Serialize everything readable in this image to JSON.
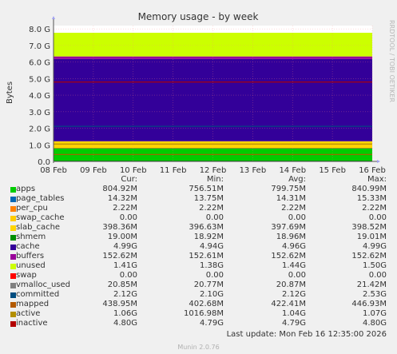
{
  "chart_data": {
    "type": "area",
    "title": "Memory usage - by week",
    "ylabel": "Bytes",
    "xlabel": "",
    "ylim": [
      0,
      8.2
    ],
    "yunit": "G",
    "yticks": [
      "0.0",
      "1.0 G",
      "2.0 G",
      "3.0 G",
      "4.0 G",
      "5.0 G",
      "6.0 G",
      "7.0 G",
      "8.0 G"
    ],
    "yticks_values": [
      0,
      1,
      2,
      3,
      4,
      5,
      6,
      7,
      8
    ],
    "xticks": [
      "08 Feb",
      "09 Feb",
      "10 Feb",
      "11 Feb",
      "12 Feb",
      "13 Feb",
      "14 Feb",
      "15 Feb",
      "16 Feb"
    ],
    "grid": true,
    "stack_order": [
      "apps",
      "page_tables",
      "per_cpu",
      "swap_cache",
      "slab_cache",
      "cache",
      "buffers",
      "unused"
    ],
    "line_order": [
      "swap",
      "vmalloc_used",
      "committed",
      "mapped",
      "active",
      "inactive",
      "shmem"
    ],
    "series": [
      {
        "name": "apps",
        "color": "#00cc00",
        "cur": "804.92M",
        "min": "756.51M",
        "avg": "799.75M",
        "max": "840.99M",
        "value": 0.8
      },
      {
        "name": "page_tables",
        "color": "#0066b3",
        "cur": "14.32M",
        "min": "13.75M",
        "avg": "14.31M",
        "max": "15.33M",
        "value": 0.014
      },
      {
        "name": "per_cpu",
        "color": "#ff8000",
        "cur": "2.22M",
        "min": "2.22M",
        "avg": "2.22M",
        "max": "2.22M",
        "value": 0.002
      },
      {
        "name": "swap_cache",
        "color": "#ffcc00",
        "cur": "0.00",
        "min": "0.00",
        "avg": "0.00",
        "max": "0.00",
        "value": 0.0
      },
      {
        "name": "slab_cache",
        "color": "#ffd500",
        "cur": "398.36M",
        "min": "396.63M",
        "avg": "397.69M",
        "max": "398.52M",
        "value": 0.4
      },
      {
        "name": "shmem",
        "color": "#008f00",
        "cur": "19.00M",
        "min": "18.92M",
        "avg": "18.96M",
        "max": "19.01M",
        "value": 0.019
      },
      {
        "name": "cache",
        "color": "#330099",
        "cur": "4.99G",
        "min": "4.94G",
        "avg": "4.96G",
        "max": "4.99G",
        "value": 4.97
      },
      {
        "name": "buffers",
        "color": "#990099",
        "cur": "152.62M",
        "min": "152.61M",
        "avg": "152.62M",
        "max": "152.62M",
        "value": 0.15
      },
      {
        "name": "unused",
        "color": "#ccff00",
        "cur": "1.41G",
        "min": "1.38G",
        "avg": "1.44G",
        "max": "1.50G",
        "value": 1.43
      },
      {
        "name": "swap",
        "color": "#ff0000",
        "cur": "0.00",
        "min": "0.00",
        "avg": "0.00",
        "max": "0.00",
        "value": 0.0
      },
      {
        "name": "vmalloc_used",
        "color": "#808080",
        "cur": "20.85M",
        "min": "20.77M",
        "avg": "20.87M",
        "max": "21.42M",
        "value": 0.021
      },
      {
        "name": "committed",
        "color": "#004d80",
        "cur": "2.12G",
        "min": "2.10G",
        "avg": "2.12G",
        "max": "2.53G",
        "value": 2.12
      },
      {
        "name": "mapped",
        "color": "#b35a00",
        "cur": "438.95M",
        "min": "402.68M",
        "avg": "422.41M",
        "max": "446.93M",
        "value": 0.42
      },
      {
        "name": "active",
        "color": "#b38f00",
        "cur": "1.06G",
        "min": "1016.98M",
        "avg": "1.04G",
        "max": "1.07G",
        "value": 1.05
      },
      {
        "name": "inactive",
        "color": "#b30000",
        "cur": "4.80G",
        "min": "4.79G",
        "avg": "4.79G",
        "max": "4.80G",
        "value": 4.79
      }
    ]
  },
  "legend_headers": {
    "cur": "Cur:",
    "min": "Min:",
    "avg": "Avg:",
    "max": "Max:"
  },
  "last_update": "Last update: Mon Feb 16 12:35:00 2026",
  "footer": "Munin 2.0.76",
  "side_label": "RRDTOOL / TOBI OETIKER"
}
